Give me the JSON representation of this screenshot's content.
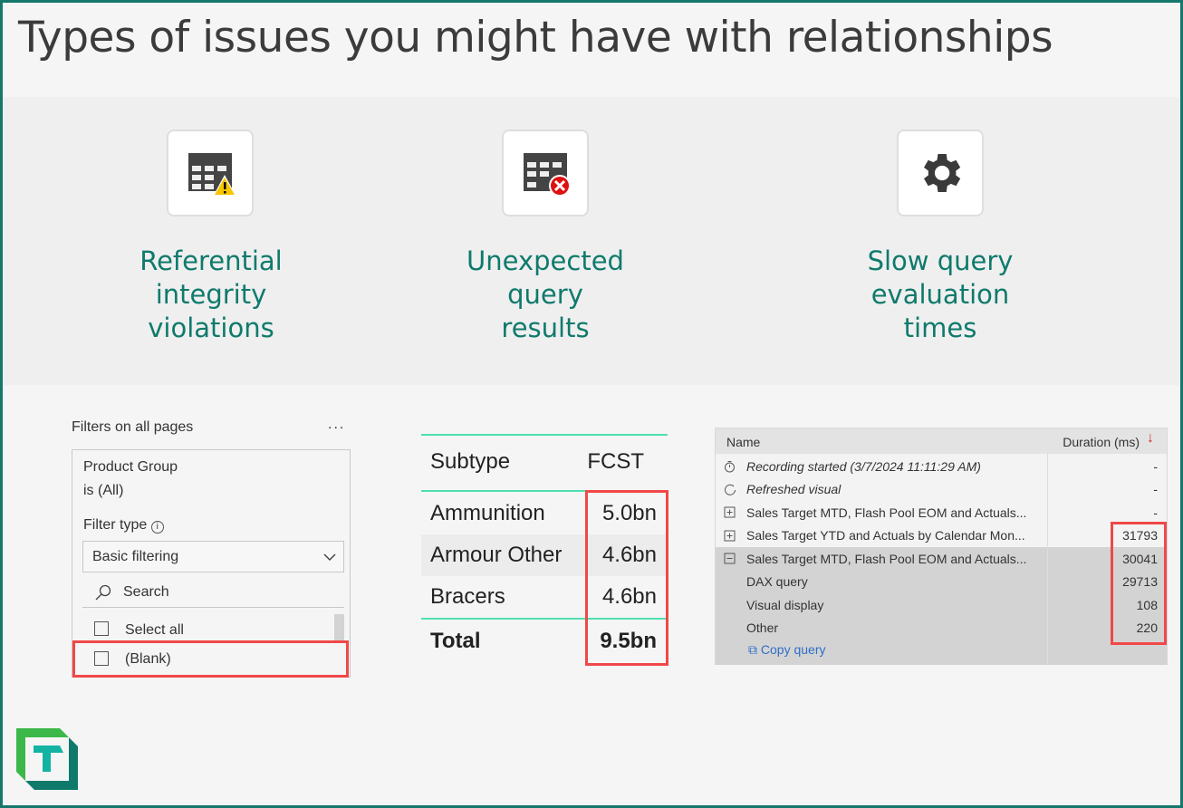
{
  "title": "Types of issues you might have with relationships",
  "issues": [
    {
      "icon": "table-warning-icon",
      "label": [
        "Referential",
        "integrity",
        "violations"
      ]
    },
    {
      "icon": "table-error-icon",
      "label": [
        "Unexpected",
        "query",
        "results"
      ]
    },
    {
      "icon": "gear-icon",
      "label": [
        "Slow query",
        "evaluation",
        "times"
      ]
    }
  ],
  "filters": {
    "header": "Filters on all pages",
    "more": "...",
    "field": "Product Group",
    "condition": "is (All)",
    "filter_type_label": "Filter type",
    "filter_type_value": "Basic filtering",
    "search_placeholder": "Search",
    "items": [
      "Select all",
      "(Blank)"
    ]
  },
  "table": {
    "headers": [
      "Subtype",
      "FCST"
    ],
    "rows": [
      [
        "Ammunition",
        "5.0bn"
      ],
      [
        "Armour Other",
        "4.6bn"
      ],
      [
        "Bracers",
        "4.6bn"
      ]
    ],
    "total": [
      "Total",
      "9.5bn"
    ]
  },
  "performance": {
    "headers": [
      "Name",
      "Duration (ms)"
    ],
    "rows": [
      {
        "icon": "timer-icon",
        "name": "Recording started (3/7/2024 11:11:29 AM)",
        "value": "-"
      },
      {
        "icon": "refresh-icon",
        "name": "Refreshed visual",
        "value": "-"
      },
      {
        "icon": "expand-icon",
        "name": "Sales Target MTD, Flash Pool EOM and Actuals...",
        "value": "-"
      },
      {
        "icon": "expand-icon",
        "name": "Sales Target YTD and Actuals by Calendar Mon...",
        "value": "31793"
      },
      {
        "icon": "collapse-icon",
        "name": "Sales Target MTD, Flash Pool EOM and Actuals...",
        "value": "30041"
      },
      {
        "icon": "",
        "name": "DAX query",
        "value": "29713"
      },
      {
        "icon": "",
        "name": "Visual display",
        "value": "108"
      },
      {
        "icon": "",
        "name": "Other",
        "value": "220"
      }
    ],
    "copy_query": "Copy query"
  },
  "colors": {
    "accent": "#0f7a6c",
    "highlight": "#f04848",
    "table_rule": "#4fe0b0"
  }
}
